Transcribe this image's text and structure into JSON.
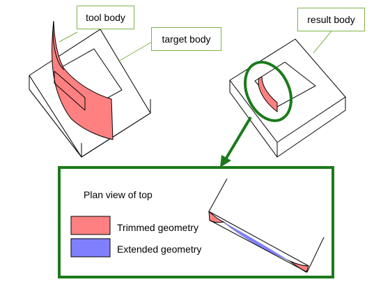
{
  "callouts": {
    "tool_body": "tool body",
    "target_body": "target body",
    "result_body": "result body"
  },
  "inset": {
    "title": "Plan view of top",
    "legend": [
      {
        "label": "Trimmed geometry",
        "color": "#ff8080"
      },
      {
        "label": "Extended geometry",
        "color": "#8080ff"
      }
    ]
  },
  "colors": {
    "highlight": "#1a7a1a",
    "callout_border": "#7fb24a",
    "trimmed": "#ff8080",
    "extended": "#8080ff"
  }
}
